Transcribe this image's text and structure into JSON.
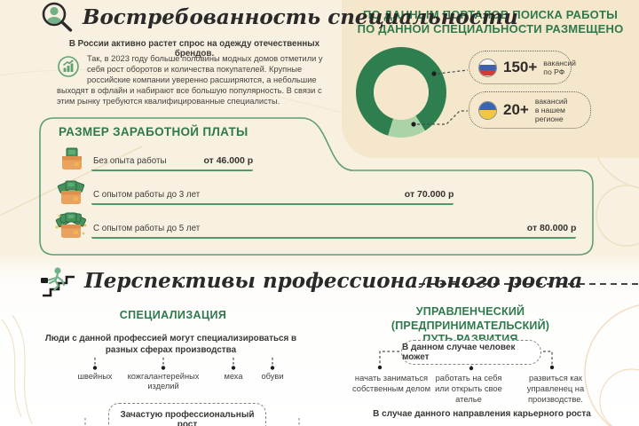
{
  "demand": {
    "title": "Востребованность специальности",
    "lead": "В России активно растет спрос на одежду отечественных брендов.",
    "body": "Так, в 2023 году больше половины модных домов отметили у себя рост оборотов и количества покупателей. Крупные российские компании уверенно расширяются, а небольшие выходят в офлайн и набирают все большую популярность. В связи с этим рынку требуются квалифицированные специалисты."
  },
  "jobs_panel": {
    "title_line1": "ПО ДАННЫМ ПОРТАЛОВ ПОИСКА РАБОТЫ",
    "title_line2": "ПО ДАННОЙ СПЕЦИАЛЬНОСТИ РАЗМЕЩЕНО",
    "badges": [
      {
        "flag": "russia-flag",
        "count": "150+",
        "label_line1": "вакансий",
        "label_line2": "по РФ"
      },
      {
        "flag": "region-flag",
        "count": "20+",
        "label_line1": "вакансий",
        "label_line2": "в нашем регионе"
      }
    ]
  },
  "salary": {
    "title": "РАЗМЕР ЗАРАБОТНОЙ ПЛАТЫ",
    "rows": [
      {
        "label": "Без опыта работы",
        "value": "от 46.000 р",
        "bar_percent": 33
      },
      {
        "label": "С опытом работы до 3 лет",
        "value": "от 70.000 р",
        "bar_percent": 74
      },
      {
        "label": "С опытом работы до 5 лет",
        "value": "от 80.000 р",
        "bar_percent": 99
      }
    ]
  },
  "growth": {
    "title": "Перспективы профессионального роста",
    "specialization": {
      "heading": "СПЕЦИАЛИЗАЦИЯ",
      "intro": "Люди с данной профессией могут специализироваться в разных сферах производства",
      "branches": [
        "швейных",
        "кожгалантерейных изделий",
        "меха",
        "обуви"
      ],
      "note": "Зачастую профессиональный рост"
    },
    "management": {
      "heading_line1": "УПРАВЛЕНЧЕСКИЙ (ПРЕДПРИНИМАТЕЛЬСКИЙ)",
      "heading_line2": "ПУТЬ РАЗВИТИЯ",
      "box": "В данном случае человек может",
      "branches": [
        "начать заниматься собственным делом",
        "работать на себя или открыть свое ателье",
        "развиться как управленец на производстве."
      ],
      "footer": "В случае данного направления карьерного роста"
    }
  },
  "colors": {
    "background_cream": "#f8f0e0",
    "panel_cream": "#f5e7cc",
    "green_text": "#2e7a4d",
    "green_line": "#55976d",
    "donut_dark": "#2f7e50",
    "donut_light": "#abd3a8",
    "dark_text": "#3d3b38",
    "bag_orange": "#eaa35f",
    "bill_green": "#46925d"
  },
  "chart_data": {
    "type": "pie",
    "title": "ПО ДАННЫМ ПОРТАЛОВ ПОИСКА РАБОТЫ ПО ДАННОЙ СПЕЦИАЛЬНОСТИ РАЗМЕЩЕНО",
    "slices": [
      {
        "label": "вакансий по РФ",
        "value": "150+",
        "approx_share_deg": 311,
        "color": "#2f7e50"
      },
      {
        "label": "вакансий в нашем регионе",
        "value": "20+",
        "approx_share_deg": 49,
        "color": "#abd3a8"
      }
    ],
    "legend_position": "right"
  }
}
